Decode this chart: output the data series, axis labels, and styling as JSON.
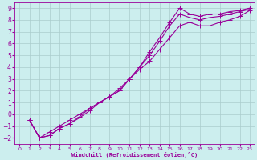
{
  "background_color": "#cceeee",
  "grid_color": "#aacccc",
  "line_color": "#990099",
  "marker": "+",
  "markersize": 4,
  "linewidth": 0.8,
  "xlabel": "Windchill (Refroidissement éolien,°C)",
  "xlabel_color": "#990099",
  "xlim": [
    -0.5,
    23.5
  ],
  "ylim": [
    -2.5,
    9.5
  ],
  "yticks": [
    -2,
    -1,
    0,
    1,
    2,
    3,
    4,
    5,
    6,
    7,
    8,
    9
  ],
  "xticks": [
    0,
    1,
    2,
    3,
    4,
    5,
    6,
    7,
    8,
    9,
    10,
    11,
    12,
    13,
    14,
    15,
    16,
    17,
    18,
    19,
    20,
    21,
    22,
    23
  ],
  "series": [
    {
      "x": [
        1,
        2,
        3,
        4,
        5,
        6,
        7,
        8,
        9,
        10,
        11,
        12,
        13,
        14,
        15,
        16,
        17,
        18,
        19,
        20,
        21,
        22,
        23
      ],
      "y": [
        -0.5,
        -2.0,
        -1.8,
        -1.2,
        -0.8,
        -0.3,
        0.3,
        1.0,
        1.5,
        2.0,
        3.0,
        4.0,
        5.3,
        6.5,
        7.8,
        9.0,
        8.5,
        8.3,
        8.5,
        8.5,
        8.7,
        8.8,
        9.0
      ]
    },
    {
      "x": [
        1,
        2,
        3,
        4,
        5,
        6,
        7,
        8,
        9,
        10,
        11,
        12,
        13,
        14,
        15,
        16,
        17,
        18,
        19,
        20,
        21,
        22,
        23
      ],
      "y": [
        -0.5,
        -2.0,
        -1.8,
        -1.2,
        -0.8,
        -0.2,
        0.5,
        1.0,
        1.5,
        2.0,
        3.0,
        4.0,
        5.0,
        6.2,
        7.5,
        8.5,
        8.2,
        8.0,
        8.2,
        8.3,
        8.5,
        8.7,
        8.9
      ]
    },
    {
      "x": [
        1,
        2,
        3,
        4,
        5,
        6,
        7,
        8,
        9,
        10,
        11,
        12,
        13,
        14,
        15,
        16,
        17,
        18,
        19,
        20,
        21,
        22,
        23
      ],
      "y": [
        -0.5,
        -2.0,
        -1.5,
        -1.0,
        -0.5,
        0.0,
        0.5,
        1.0,
        1.5,
        2.2,
        3.0,
        3.8,
        4.5,
        5.5,
        6.5,
        7.5,
        7.8,
        7.5,
        7.5,
        7.8,
        8.0,
        8.3,
        8.8
      ]
    }
  ]
}
